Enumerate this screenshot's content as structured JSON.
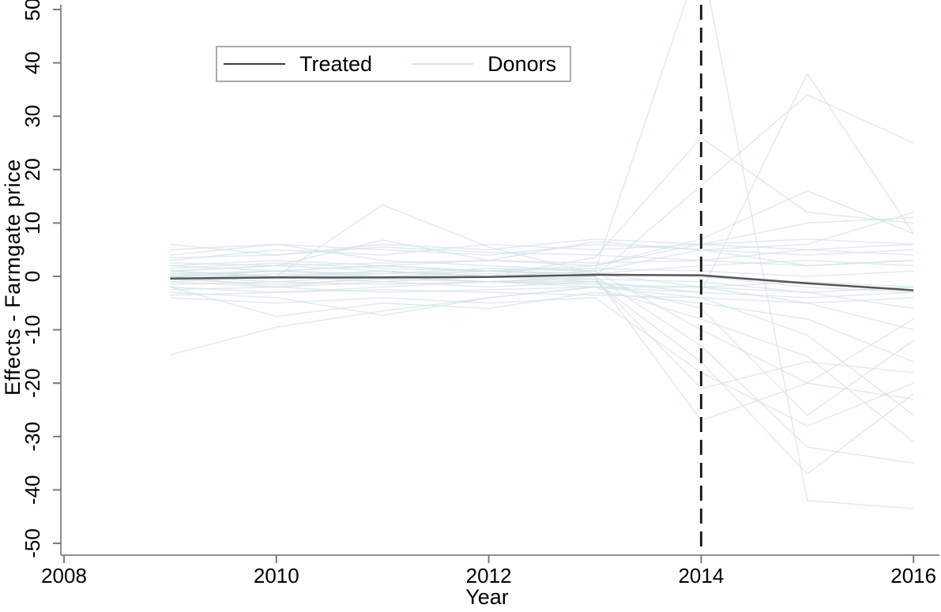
{
  "figure": {
    "background": "#ffffff"
  },
  "legend": {
    "items": [
      {
        "label": "Treated",
        "color": "#3f3f3f"
      },
      {
        "label": "Donors",
        "color": "#d9e6e9"
      }
    ]
  },
  "colors": {
    "treated_line": "#565656",
    "donor_line": "#d3e2e6",
    "axis": "#8f8f8f",
    "tick": "#7a7a7a",
    "vline": "#1f1f1f",
    "text": "#000000"
  },
  "chart_data": {
    "type": "line",
    "title": "",
    "xlabel": "Year",
    "ylabel": "Effects - Farmgate price",
    "xlim": [
      2008,
      2016
    ],
    "ylim": [
      -50,
      50
    ],
    "xticks": [
      2008,
      2010,
      2012,
      2014,
      2016
    ],
    "yticks": [
      50,
      40,
      30,
      20,
      10,
      0,
      -10,
      -20,
      -30,
      -40,
      -50
    ],
    "grid": false,
    "legend_position": "top-center",
    "vline_x": 2014,
    "vline_style": "dashed",
    "x": [
      2009,
      2010,
      2011,
      2012,
      2013,
      2014,
      2015,
      2016
    ],
    "series": [
      {
        "name": "Treated",
        "role": "treated",
        "values": [
          -0.4,
          -0.2,
          -0.2,
          -0.1,
          0.3,
          0.2,
          -1.3,
          -2.6
        ]
      }
    ],
    "donor_series": [
      [
        0.5,
        1.0,
        0.5,
        1.5,
        1.0,
        60,
        -42,
        -43.5
      ],
      [
        -1,
        0,
        1,
        0,
        -1,
        -3,
        38,
        8
      ],
      [
        2,
        1,
        2,
        1,
        0,
        17,
        34,
        25
      ],
      [
        1,
        2,
        1,
        0,
        3.5,
        26,
        12,
        10
      ],
      [
        0,
        -1,
        0,
        1,
        2,
        7,
        16,
        8
      ],
      [
        3,
        5,
        4,
        6,
        5,
        6,
        7,
        6
      ],
      [
        5,
        6,
        5,
        4,
        6,
        5,
        4,
        5
      ],
      [
        -2,
        -3,
        -2,
        -1,
        -2,
        -4,
        -11,
        -26
      ],
      [
        0,
        -2,
        -1,
        -2,
        -1,
        -6,
        -26,
        -12
      ],
      [
        1,
        0,
        -1,
        0,
        1,
        -10,
        -20,
        -8
      ],
      [
        -1,
        -2,
        0,
        -1,
        0,
        -13,
        -32,
        -35
      ],
      [
        0,
        1,
        0,
        -1,
        -1,
        -16,
        -37,
        -22
      ],
      [
        1,
        0,
        1,
        0,
        -0.5,
        -21,
        -16,
        -18
      ],
      [
        -0.5,
        0.5,
        0,
        0.5,
        0,
        -27,
        -20,
        -23
      ],
      [
        -14.7,
        -9.5,
        -6.5,
        -4,
        -2,
        -3,
        -4,
        -3
      ],
      [
        -2,
        -7.5,
        -5,
        -6,
        -3,
        -5,
        -8,
        -16
      ],
      [
        0,
        0,
        13.4,
        5.5,
        0.5,
        2,
        3,
        2
      ],
      [
        1,
        2,
        6.8,
        3,
        6.5,
        5,
        2,
        3
      ],
      [
        -3,
        -4,
        -7.3,
        -4,
        -2,
        -2,
        -3,
        -2
      ],
      [
        4,
        6,
        3,
        2,
        1,
        5,
        6,
        12
      ],
      [
        2,
        3,
        2,
        3,
        2,
        6,
        10,
        11
      ],
      [
        0.5,
        0,
        0.5,
        1,
        0.5,
        0,
        -2,
        -3
      ],
      [
        -1.5,
        -1,
        -1.5,
        -1,
        -1.5,
        -2,
        -1,
        -2
      ],
      [
        2.5,
        2,
        2.5,
        3,
        2.5,
        3,
        2,
        3
      ],
      [
        -3.5,
        -3,
        -2.5,
        -3,
        -3.5,
        -4,
        -5,
        -4
      ],
      [
        1.5,
        2.5,
        1.5,
        1,
        1.5,
        1,
        0,
        1
      ],
      [
        -0.5,
        -1.5,
        -0.5,
        -1,
        -0.5,
        -1,
        -3,
        -6
      ],
      [
        3.5,
        4,
        5.5,
        4.5,
        4,
        3,
        5,
        4
      ],
      [
        -2.5,
        -2,
        -3,
        -2.5,
        -2,
        -8,
        -15,
        -31
      ],
      [
        0,
        1,
        2,
        1,
        0.5,
        -2,
        -5,
        -10
      ],
      [
        -4,
        -5,
        -4,
        -5,
        -4,
        -18,
        -28,
        -20
      ],
      [
        6,
        4,
        6,
        5,
        7,
        6,
        5,
        6
      ]
    ]
  }
}
